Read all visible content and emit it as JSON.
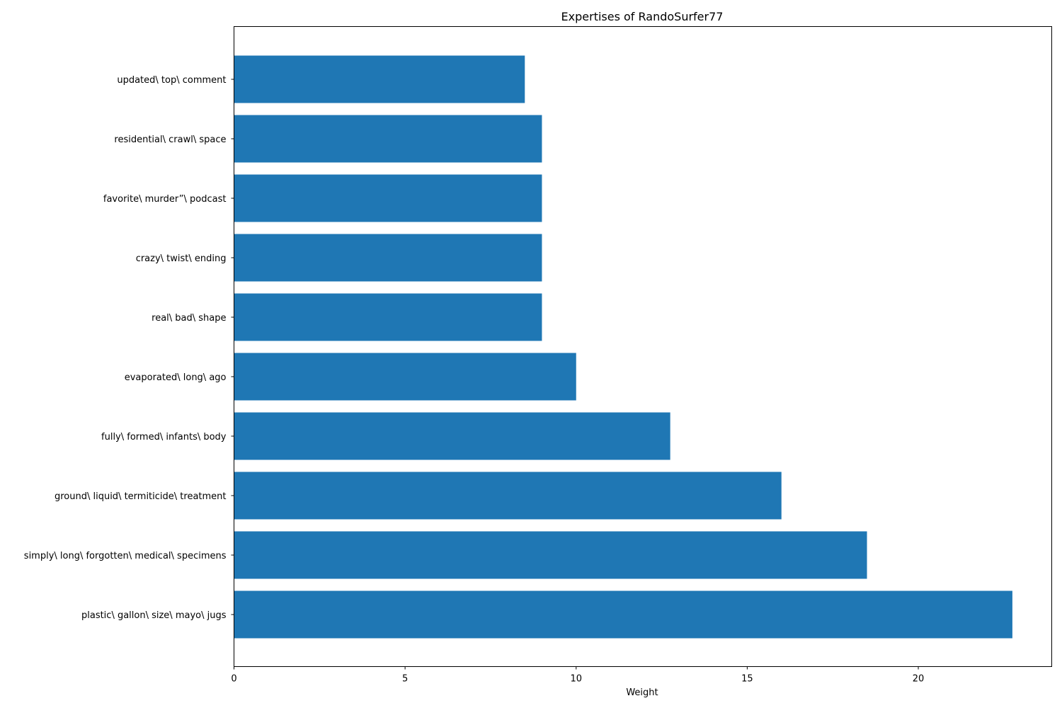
{
  "chart_data": {
    "type": "bar",
    "orientation": "horizontal",
    "title": "Expertises of RandoSurfer77",
    "xlabel": "Weight",
    "ylabel": "",
    "categories": [
      "updated\\ top\\ comment",
      "residential\\ crawl\\ space",
      "favorite\\ murder”\\ podcast",
      "crazy\\ twist\\ ending",
      "real\\ bad\\ shape",
      "evaporated\\ long\\ ago",
      "fully\\ formed\\ infants\\ body",
      "ground\\ liquid\\ termiticide\\ treatment",
      "simply\\ long\\ forgotten\\ medical\\ specimens",
      "plastic\\ gallon\\ size\\ mayo\\ jugs"
    ],
    "values": [
      8.5,
      9.0,
      9.0,
      9.0,
      9.0,
      10.0,
      12.75,
      16.0,
      18.5,
      22.75
    ],
    "xlim": [
      0,
      23.9
    ],
    "xticks": [
      0,
      5,
      10,
      15,
      20
    ],
    "grid": false,
    "bar_color": "#1f77b4"
  }
}
